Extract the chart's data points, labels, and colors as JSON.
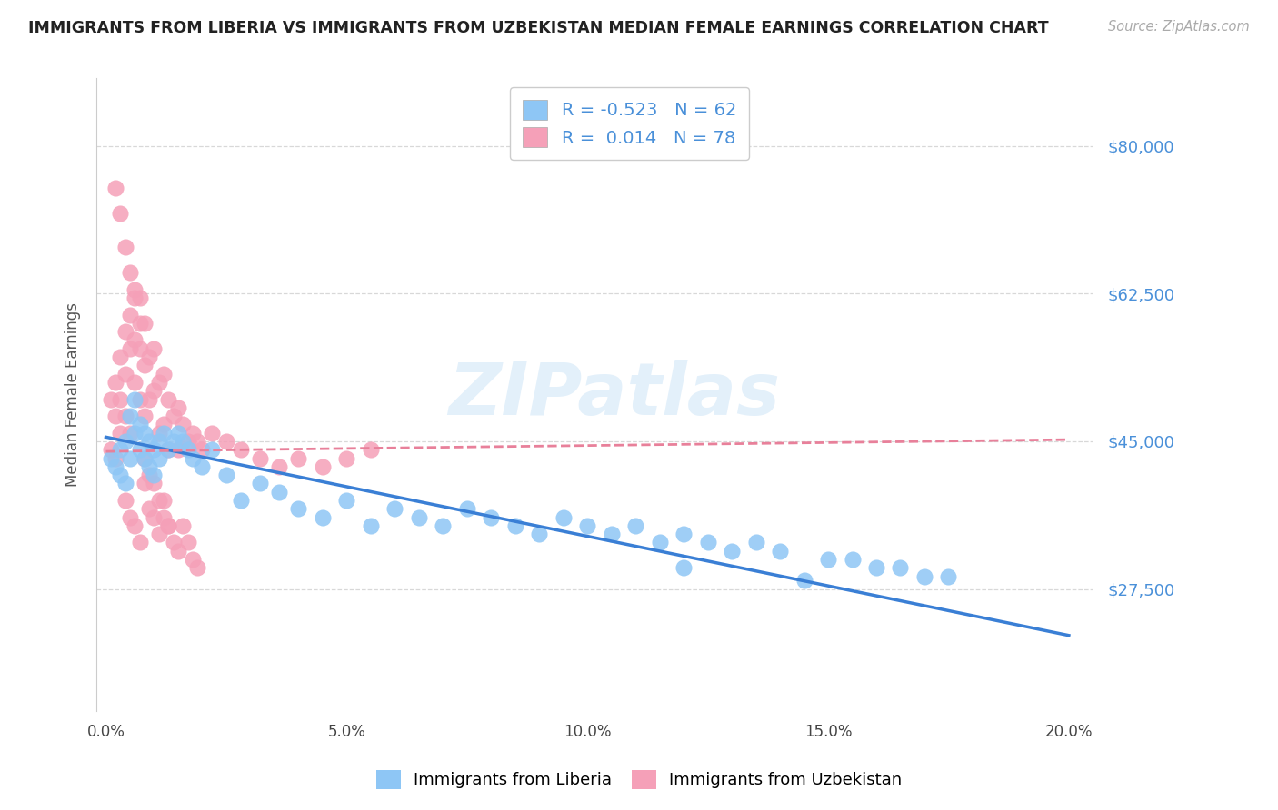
{
  "title": "IMMIGRANTS FROM LIBERIA VS IMMIGRANTS FROM UZBEKISTAN MEDIAN FEMALE EARNINGS CORRELATION CHART",
  "source": "Source: ZipAtlas.com",
  "ylabel": "Median Female Earnings",
  "xlabel_ticks": [
    "0.0%",
    "5.0%",
    "10.0%",
    "15.0%",
    "20.0%"
  ],
  "xlabel_vals": [
    0.0,
    0.05,
    0.1,
    0.15,
    0.2
  ],
  "ytick_labels": [
    "$27,500",
    "$45,000",
    "$62,500",
    "$80,000"
  ],
  "ytick_vals": [
    27500,
    45000,
    62500,
    80000
  ],
  "ylim": [
    13000,
    88000
  ],
  "xlim": [
    -0.002,
    0.205
  ],
  "legend1_label": "Immigrants from Liberia",
  "legend2_label": "Immigrants from Uzbekistan",
  "R1": "-0.523",
  "N1": "62",
  "R2": "0.014",
  "N2": "78",
  "color_blue": "#8ec6f5",
  "color_pink": "#f5a0b8",
  "line_blue": "#3a7fd5",
  "line_pink": "#e8809a",
  "watermark_text": "ZIPatlas",
  "background_color": "#ffffff",
  "grid_color": "#d8d8d8",
  "title_color": "#222222",
  "axis_label_color": "#555555",
  "ytick_color": "#4a90d9",
  "source_color": "#aaaaaa",
  "liberia_x": [
    0.001,
    0.002,
    0.003,
    0.003,
    0.004,
    0.004,
    0.005,
    0.005,
    0.006,
    0.006,
    0.007,
    0.007,
    0.008,
    0.008,
    0.009,
    0.009,
    0.01,
    0.01,
    0.011,
    0.011,
    0.012,
    0.013,
    0.014,
    0.015,
    0.016,
    0.017,
    0.018,
    0.02,
    0.022,
    0.025,
    0.028,
    0.032,
    0.036,
    0.04,
    0.045,
    0.05,
    0.055,
    0.06,
    0.065,
    0.07,
    0.075,
    0.08,
    0.085,
    0.09,
    0.095,
    0.1,
    0.105,
    0.11,
    0.115,
    0.12,
    0.125,
    0.13,
    0.135,
    0.14,
    0.15,
    0.155,
    0.16,
    0.165,
    0.17,
    0.175,
    0.12,
    0.145
  ],
  "liberia_y": [
    43000,
    42000,
    44000,
    41000,
    45000,
    40000,
    43000,
    48000,
    46000,
    50000,
    44000,
    47000,
    43000,
    46000,
    42000,
    45000,
    44000,
    41000,
    45000,
    43000,
    46000,
    44000,
    45000,
    46000,
    45000,
    44000,
    43000,
    42000,
    44000,
    41000,
    38000,
    40000,
    39000,
    37000,
    36000,
    38000,
    35000,
    37000,
    36000,
    35000,
    37000,
    36000,
    35000,
    34000,
    36000,
    35000,
    34000,
    35000,
    33000,
    34000,
    33000,
    32000,
    33000,
    32000,
    31000,
    31000,
    30000,
    30000,
    29000,
    29000,
    30000,
    28500
  ],
  "uzbekistan_x": [
    0.001,
    0.001,
    0.002,
    0.002,
    0.002,
    0.003,
    0.003,
    0.003,
    0.004,
    0.004,
    0.004,
    0.005,
    0.005,
    0.005,
    0.006,
    0.006,
    0.006,
    0.007,
    0.007,
    0.007,
    0.008,
    0.008,
    0.008,
    0.009,
    0.009,
    0.01,
    0.01,
    0.011,
    0.011,
    0.012,
    0.012,
    0.013,
    0.013,
    0.014,
    0.015,
    0.015,
    0.016,
    0.017,
    0.018,
    0.019,
    0.02,
    0.022,
    0.025,
    0.028,
    0.032,
    0.036,
    0.04,
    0.045,
    0.05,
    0.055,
    0.002,
    0.003,
    0.004,
    0.005,
    0.006,
    0.007,
    0.004,
    0.005,
    0.006,
    0.007,
    0.008,
    0.009,
    0.01,
    0.011,
    0.012,
    0.013,
    0.014,
    0.015,
    0.016,
    0.017,
    0.018,
    0.019,
    0.008,
    0.009,
    0.01,
    0.011,
    0.012,
    0.013
  ],
  "uzbekistan_y": [
    50000,
    44000,
    52000,
    48000,
    43000,
    55000,
    50000,
    46000,
    58000,
    53000,
    48000,
    60000,
    56000,
    46000,
    63000,
    57000,
    52000,
    62000,
    56000,
    50000,
    59000,
    54000,
    48000,
    55000,
    50000,
    56000,
    51000,
    52000,
    46000,
    53000,
    47000,
    50000,
    44000,
    48000,
    49000,
    44000,
    47000,
    45000,
    46000,
    45000,
    44000,
    46000,
    45000,
    44000,
    43000,
    42000,
    43000,
    42000,
    43000,
    44000,
    75000,
    72000,
    68000,
    65000,
    62000,
    59000,
    38000,
    36000,
    35000,
    33000,
    40000,
    37000,
    36000,
    34000,
    38000,
    35000,
    33000,
    32000,
    35000,
    33000,
    31000,
    30000,
    43000,
    41000,
    40000,
    38000,
    36000,
    35000
  ]
}
